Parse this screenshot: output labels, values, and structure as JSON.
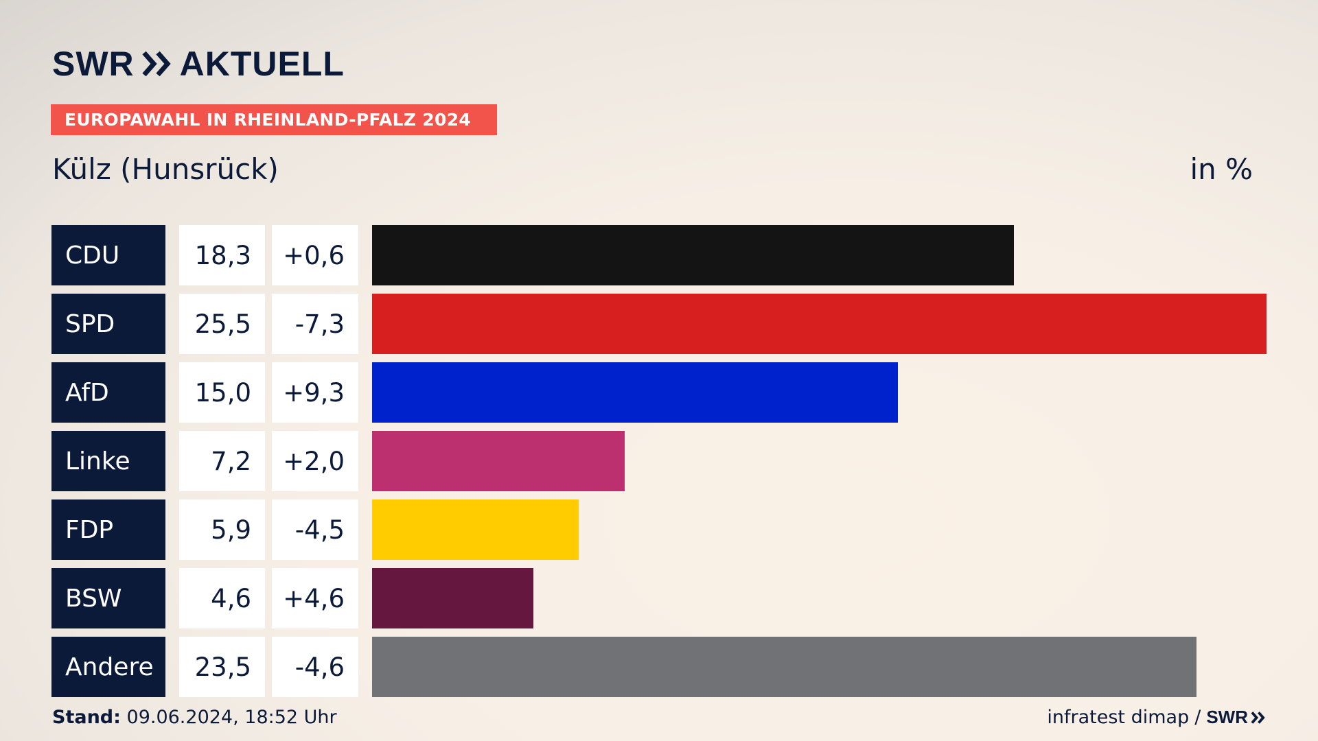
{
  "header": {
    "logo_text": "SWR",
    "logo_suffix": "AKTUELL",
    "badge": "EUROPAWAHL IN RHEINLAND-PFALZ 2024"
  },
  "chart_data": {
    "type": "bar",
    "title": "Külz (Hunsrück)",
    "unit_label": "in %",
    "categories": [
      "CDU",
      "SPD",
      "AfD",
      "Linke",
      "FDP",
      "BSW",
      "Andere"
    ],
    "values": [
      18.3,
      25.5,
      15.0,
      7.2,
      5.9,
      4.6,
      23.5
    ],
    "value_labels": [
      "18,3",
      "25,5",
      "15,0",
      "7,2",
      "5,9",
      "4,6",
      "23,5"
    ],
    "diff_labels": [
      "+0,6",
      "-7,3",
      "+9,3",
      "+2,0",
      "-4,5",
      "+4,6",
      "-4,6"
    ],
    "colors": [
      "#141414",
      "#d71f1f",
      "#0022cc",
      "#bc3070",
      "#ffcc00",
      "#66173f",
      "#717275"
    ],
    "xlim": [
      0,
      25.5
    ]
  },
  "footer": {
    "stand_label": "Stand:",
    "stand_value": "09.06.2024, 18:52 Uhr",
    "source": "infratest dimap",
    "separator": "/",
    "source_logo": "SWR"
  }
}
